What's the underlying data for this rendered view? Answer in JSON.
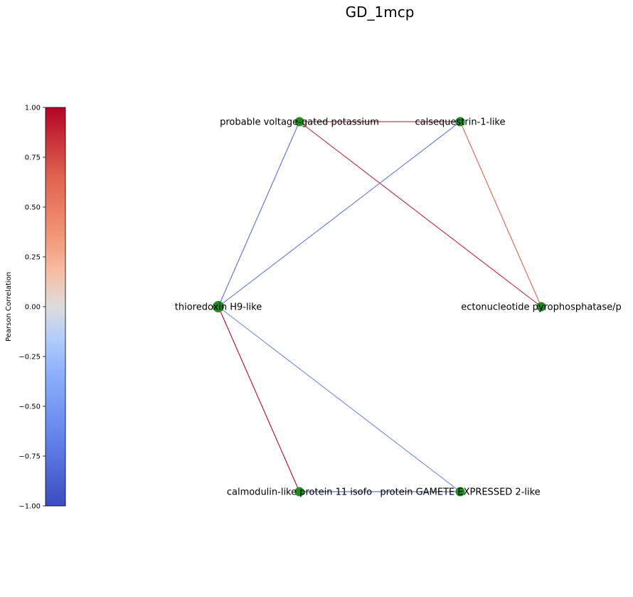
{
  "title": "GD_1mcp",
  "colorbar": {
    "label": "Pearson Correlation",
    "range": [
      -1.0,
      1.0
    ],
    "ticks": [
      "1.00",
      "0.75",
      "0.50",
      "0.25",
      "0.00",
      "−0.25",
      "−0.50",
      "−0.75",
      "−1.00"
    ],
    "colormap": [
      "#3b4cc0",
      "#7396f5",
      "#b0cbfc",
      "#dddcdc",
      "#f6bfa6",
      "#ec7f63",
      "#b40426"
    ]
  },
  "nodes": [
    {
      "id": "pvgp",
      "label": "probable voltage-gated potassium",
      "color": "#228b22"
    },
    {
      "id": "calseq",
      "label": "calsequestrin-1-like",
      "color": "#228b22"
    },
    {
      "id": "thio",
      "label": "thioredoxin H9-like",
      "color": "#228b22"
    },
    {
      "id": "ecto",
      "label": "ectonucleotide pyrophosphatase/p",
      "color": "#228b22"
    },
    {
      "id": "calmod",
      "label": "calmodulin-like protein 11 isofo",
      "color": "#228b22"
    },
    {
      "id": "gamete",
      "label": "protein GAMETE EXPRESSED 2-like",
      "color": "#228b22"
    }
  ],
  "edges": [
    {
      "source": "pvgp",
      "target": "calseq",
      "correlation": 0.97
    },
    {
      "source": "pvgp",
      "target": "thio",
      "correlation": -0.78
    },
    {
      "source": "pvgp",
      "target": "ecto",
      "correlation": 0.88
    },
    {
      "source": "calseq",
      "target": "thio",
      "correlation": -0.72
    },
    {
      "source": "calseq",
      "target": "ecto",
      "correlation": 0.65
    },
    {
      "source": "thio",
      "target": "calmod",
      "correlation": 0.98
    },
    {
      "source": "thio",
      "target": "gamete",
      "correlation": -0.6
    },
    {
      "source": "calmod",
      "target": "gamete",
      "correlation": -0.95
    }
  ]
}
